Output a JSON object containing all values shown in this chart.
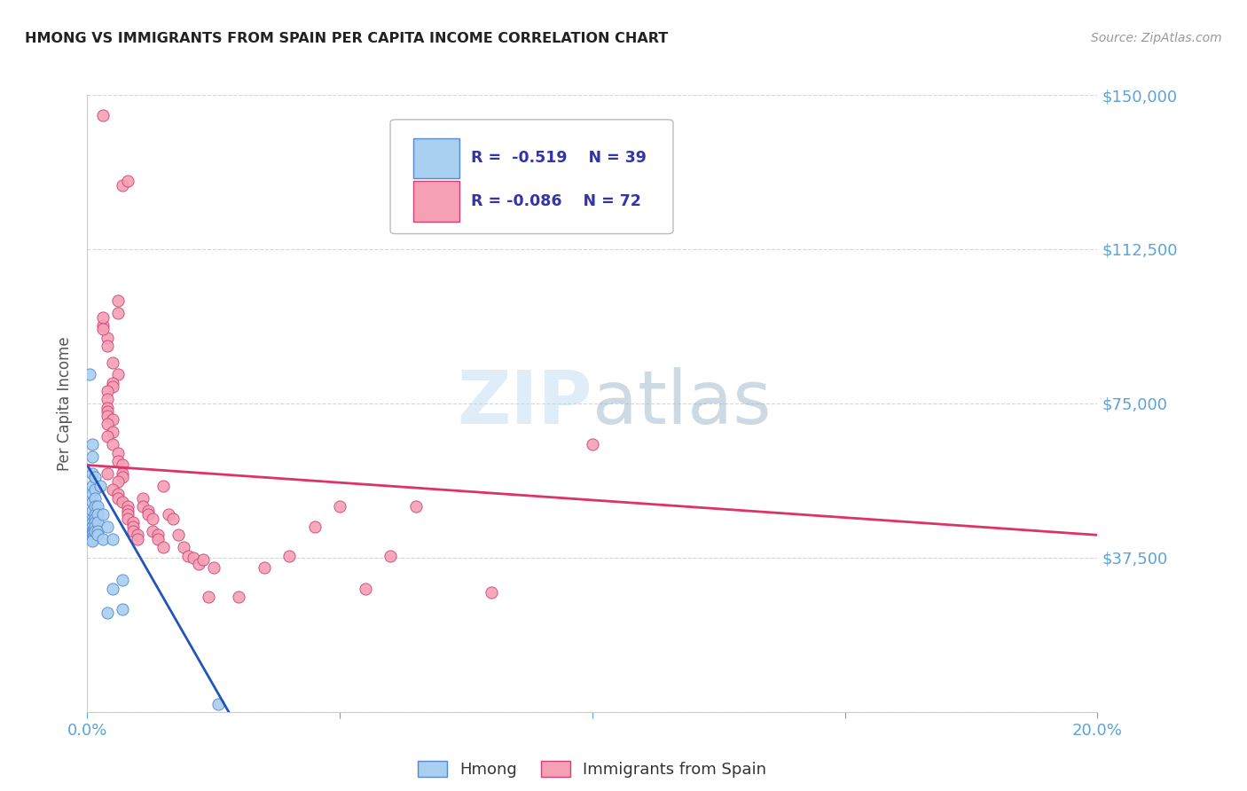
{
  "title": "HMONG VS IMMIGRANTS FROM SPAIN PER CAPITA INCOME CORRELATION CHART",
  "source": "Source: ZipAtlas.com",
  "tick_color": "#5ba3d9",
  "ylabel": "Per Capita Income",
  "xlim": [
    0.0,
    0.2
  ],
  "ylim": [
    0,
    150000
  ],
  "yticks": [
    0,
    37500,
    75000,
    112500,
    150000
  ],
  "ytick_labels": [
    "",
    "$37,500",
    "$75,000",
    "$112,500",
    "$150,000"
  ],
  "xticks": [
    0.0,
    0.05,
    0.1,
    0.15,
    0.2
  ],
  "xtick_labels": [
    "0.0%",
    "",
    "",
    "",
    "20.0%"
  ],
  "background_color": "#ffffff",
  "grid_color": "#cccccc",
  "hmong_color": "#a8cff0",
  "spain_color": "#f5a0b5",
  "hmong_edge_color": "#5588cc",
  "spain_edge_color": "#cc4477",
  "hmong_line_color": "#2255bb",
  "spain_line_color": "#dd3366",
  "hmong_scatter": [
    [
      0.0005,
      82000
    ],
    [
      0.001,
      65000
    ],
    [
      0.001,
      62000
    ],
    [
      0.001,
      58000
    ],
    [
      0.001,
      55000
    ],
    [
      0.001,
      53000
    ],
    [
      0.001,
      51000
    ],
    [
      0.001,
      49000
    ],
    [
      0.001,
      47000
    ],
    [
      0.001,
      46000
    ],
    [
      0.001,
      45000
    ],
    [
      0.001,
      44000
    ],
    [
      0.001,
      43500
    ],
    [
      0.001,
      43000
    ],
    [
      0.001,
      42500
    ],
    [
      0.001,
      42000
    ],
    [
      0.001,
      41500
    ],
    [
      0.0015,
      57000
    ],
    [
      0.0015,
      54000
    ],
    [
      0.0015,
      52000
    ],
    [
      0.0015,
      50000
    ],
    [
      0.0015,
      48000
    ],
    [
      0.0015,
      47000
    ],
    [
      0.0015,
      46000
    ],
    [
      0.0015,
      45000
    ],
    [
      0.0015,
      44000
    ],
    [
      0.002,
      50000
    ],
    [
      0.002,
      48000
    ],
    [
      0.002,
      46000
    ],
    [
      0.002,
      44000
    ],
    [
      0.002,
      43000
    ],
    [
      0.0025,
      55000
    ],
    [
      0.003,
      48000
    ],
    [
      0.003,
      42000
    ],
    [
      0.004,
      45000
    ],
    [
      0.004,
      24000
    ],
    [
      0.005,
      42000
    ],
    [
      0.005,
      30000
    ],
    [
      0.007,
      32000
    ],
    [
      0.007,
      25000
    ],
    [
      0.026,
      2000
    ]
  ],
  "spain_scatter": [
    [
      0.003,
      145000
    ],
    [
      0.007,
      128000
    ],
    [
      0.008,
      129000
    ],
    [
      0.006,
      100000
    ],
    [
      0.006,
      97000
    ],
    [
      0.003,
      94000
    ],
    [
      0.004,
      91000
    ],
    [
      0.004,
      89000
    ],
    [
      0.003,
      96000
    ],
    [
      0.003,
      93000
    ],
    [
      0.005,
      85000
    ],
    [
      0.006,
      82000
    ],
    [
      0.005,
      80000
    ],
    [
      0.005,
      79000
    ],
    [
      0.004,
      78000
    ],
    [
      0.004,
      76000
    ],
    [
      0.004,
      74000
    ],
    [
      0.004,
      73000
    ],
    [
      0.004,
      72000
    ],
    [
      0.005,
      71000
    ],
    [
      0.004,
      70000
    ],
    [
      0.005,
      68000
    ],
    [
      0.004,
      67000
    ],
    [
      0.005,
      65000
    ],
    [
      0.006,
      63000
    ],
    [
      0.006,
      61000
    ],
    [
      0.007,
      60000
    ],
    [
      0.007,
      58000
    ],
    [
      0.007,
      57000
    ],
    [
      0.006,
      56000
    ],
    [
      0.004,
      58000
    ],
    [
      0.005,
      54000
    ],
    [
      0.006,
      53000
    ],
    [
      0.006,
      52000
    ],
    [
      0.007,
      51000
    ],
    [
      0.008,
      50000
    ],
    [
      0.008,
      49000
    ],
    [
      0.008,
      48000
    ],
    [
      0.008,
      47000
    ],
    [
      0.009,
      46000
    ],
    [
      0.009,
      45000
    ],
    [
      0.009,
      44000
    ],
    [
      0.01,
      43000
    ],
    [
      0.01,
      42000
    ],
    [
      0.011,
      52000
    ],
    [
      0.011,
      50000
    ],
    [
      0.012,
      49000
    ],
    [
      0.012,
      48000
    ],
    [
      0.013,
      44000
    ],
    [
      0.013,
      47000
    ],
    [
      0.014,
      43000
    ],
    [
      0.014,
      42000
    ],
    [
      0.015,
      40000
    ],
    [
      0.015,
      55000
    ],
    [
      0.016,
      48000
    ],
    [
      0.017,
      47000
    ],
    [
      0.018,
      43000
    ],
    [
      0.019,
      40000
    ],
    [
      0.02,
      38000
    ],
    [
      0.021,
      37500
    ],
    [
      0.022,
      36000
    ],
    [
      0.023,
      37000
    ],
    [
      0.024,
      28000
    ],
    [
      0.1,
      65000
    ],
    [
      0.025,
      35000
    ],
    [
      0.035,
      35000
    ],
    [
      0.045,
      45000
    ],
    [
      0.06,
      38000
    ],
    [
      0.055,
      30000
    ],
    [
      0.08,
      29000
    ],
    [
      0.05,
      50000
    ],
    [
      0.065,
      50000
    ],
    [
      0.04,
      38000
    ],
    [
      0.03,
      28000
    ]
  ],
  "hmong_trend_x": [
    0.0,
    0.028
  ],
  "hmong_trend_y": [
    60000,
    0
  ],
  "spain_trend_x": [
    0.0,
    0.2
  ],
  "spain_trend_y": [
    60000,
    43000
  ]
}
